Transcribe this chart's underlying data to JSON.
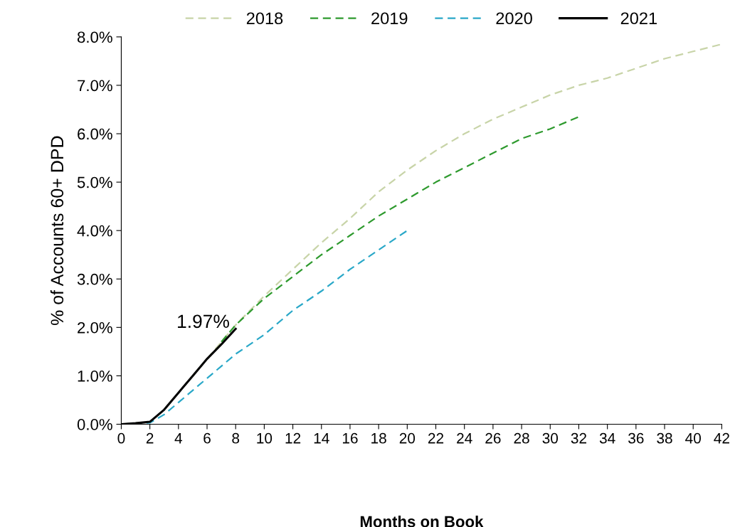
{
  "chart_data": {
    "type": "line",
    "xlabel": "Months on Book",
    "ylabel": "% of Accounts 60+ DPD",
    "xlim": [
      0,
      42
    ],
    "xticks": [
      0,
      2,
      4,
      6,
      8,
      10,
      12,
      14,
      16,
      18,
      20,
      22,
      24,
      26,
      28,
      30,
      32,
      34,
      36,
      38,
      40,
      42
    ],
    "ylim": [
      0,
      8
    ],
    "yticks": [
      {
        "value": 0,
        "label": "0.0%"
      },
      {
        "value": 1,
        "label": "1.0%"
      },
      {
        "value": 2,
        "label": "2.0%"
      },
      {
        "value": 3,
        "label": "3.0%"
      },
      {
        "value": 4,
        "label": "4.0%"
      },
      {
        "value": 5,
        "label": "5.0%"
      },
      {
        "value": 6,
        "label": "6.0%"
      },
      {
        "value": 7,
        "label": "7.0%"
      },
      {
        "value": 8,
        "label": "8.0%"
      }
    ],
    "grid": false,
    "legend": "top",
    "marker": "none",
    "annotations": [
      {
        "text": "1.97%",
        "x": 8,
        "y": 1.97
      }
    ],
    "series": [
      {
        "name": "2018",
        "color": "#c8d4a8",
        "line_style": "dashed",
        "x": [
          0,
          2,
          3,
          4,
          5,
          6,
          7,
          8,
          10,
          12,
          14,
          16,
          18,
          20,
          22,
          24,
          26,
          28,
          30,
          32,
          34,
          36,
          38,
          40,
          42
        ],
        "values": [
          0,
          0.05,
          0.3,
          0.65,
          1.0,
          1.35,
          1.7,
          2.05,
          2.65,
          3.2,
          3.75,
          4.25,
          4.8,
          5.25,
          5.65,
          6.0,
          6.3,
          6.55,
          6.8,
          7.0,
          7.15,
          7.35,
          7.55,
          7.7,
          7.85
        ]
      },
      {
        "name": "2019",
        "color": "#2e9a2e",
        "line_style": "dashed",
        "x": [
          7,
          8,
          10,
          12,
          14,
          16,
          18,
          20,
          22,
          24,
          26,
          28,
          30,
          32
        ],
        "values": [
          1.7,
          2.05,
          2.6,
          3.05,
          3.5,
          3.9,
          4.3,
          4.65,
          5.0,
          5.3,
          5.6,
          5.9,
          6.1,
          6.35
        ]
      },
      {
        "name": "2020",
        "color": "#2aa8c8",
        "line_style": "dashed",
        "x": [
          0,
          2,
          3,
          4,
          5,
          6,
          7,
          8,
          10,
          12,
          14,
          16,
          18,
          20
        ],
        "values": [
          0,
          0.03,
          0.2,
          0.45,
          0.7,
          0.95,
          1.2,
          1.45,
          1.85,
          2.35,
          2.75,
          3.2,
          3.6,
          4.0
        ]
      },
      {
        "name": "2021",
        "color": "#000000",
        "line_style": "solid",
        "x": [
          0,
          1,
          2,
          3,
          4,
          5,
          6,
          7,
          8
        ],
        "values": [
          0,
          0.02,
          0.05,
          0.3,
          0.65,
          1.0,
          1.35,
          1.65,
          1.97
        ]
      }
    ]
  }
}
